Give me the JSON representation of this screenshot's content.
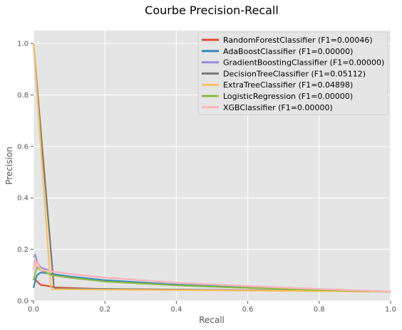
{
  "chart_data": {
    "type": "line",
    "title": "Courbe Precision-Recall",
    "xlabel": "Recall",
    "ylabel": "Precision",
    "xlim": [
      0,
      1
    ],
    "ylim": [
      0,
      1.05
    ],
    "grid": true,
    "legend_position": "top-right",
    "x_ticks": [
      "0.0",
      "0.2",
      "0.4",
      "0.6",
      "0.8",
      "1.0"
    ],
    "y_ticks": [
      "0.0",
      "0.2",
      "0.4",
      "0.6",
      "0.8",
      "1.0"
    ],
    "series": [
      {
        "name": "RandomForestClassifier (F1=0.00046)",
        "color": "#e24a33",
        "x": [
          0,
          0.01,
          0.02,
          0.04,
          0.06,
          0.1,
          0.2,
          0.4,
          0.6,
          0.8,
          1.0
        ],
        "y": [
          0.09,
          0.075,
          0.062,
          0.058,
          0.052,
          0.05,
          0.046,
          0.043,
          0.041,
          0.039,
          0.036
        ]
      },
      {
        "name": "AdaBoostClassifier (F1=0.00000)",
        "color": "#348abd",
        "x": [
          0,
          0.005,
          0.01,
          0.02,
          0.05,
          0.1,
          0.2,
          0.4,
          0.6,
          0.8,
          1.0
        ],
        "y": [
          0.05,
          0.08,
          0.1,
          0.11,
          0.105,
          0.095,
          0.08,
          0.063,
          0.052,
          0.043,
          0.036
        ]
      },
      {
        "name": "GradientBoostingClassifier (F1=0.00000)",
        "color": "#988ed5",
        "x": [
          0,
          0.005,
          0.01,
          0.02,
          0.05,
          0.1,
          0.2,
          0.4,
          0.6,
          0.8,
          1.0
        ],
        "y": [
          0.17,
          0.18,
          0.15,
          0.13,
          0.115,
          0.105,
          0.09,
          0.07,
          0.057,
          0.046,
          0.036
        ]
      },
      {
        "name": "DecisionTreeClassifier (F1=0.05112)",
        "color": "#777777",
        "x": [
          0,
          0.057,
          0.06,
          1.0
        ],
        "y": [
          1.0,
          0.055,
          0.048,
          0.036
        ]
      },
      {
        "name": "ExtraTreeClassifier (F1=0.04898)",
        "color": "#fbc15e",
        "x": [
          0,
          0.048,
          0.052,
          1.0
        ],
        "y": [
          1.0,
          0.06,
          0.045,
          0.036
        ]
      },
      {
        "name": "LogisticRegression (F1=0.00000)",
        "color": "#8eba42",
        "x": [
          0,
          0.005,
          0.01,
          0.02,
          0.05,
          0.1,
          0.2,
          0.4,
          0.6,
          0.8,
          1.0
        ],
        "y": [
          0.08,
          0.11,
          0.13,
          0.12,
          0.1,
          0.09,
          0.075,
          0.06,
          0.05,
          0.042,
          0.036
        ]
      },
      {
        "name": "XGBClassifier (F1=0.00000)",
        "color": "#ffb5b8",
        "x": [
          0,
          0.003,
          0.006,
          0.01,
          0.02,
          0.05,
          0.1,
          0.2,
          0.4,
          0.6,
          0.8,
          1.0
        ],
        "y": [
          0.12,
          0.16,
          0.13,
          0.15,
          0.12,
          0.115,
          0.105,
          0.09,
          0.07,
          0.057,
          0.046,
          0.036
        ]
      }
    ]
  }
}
